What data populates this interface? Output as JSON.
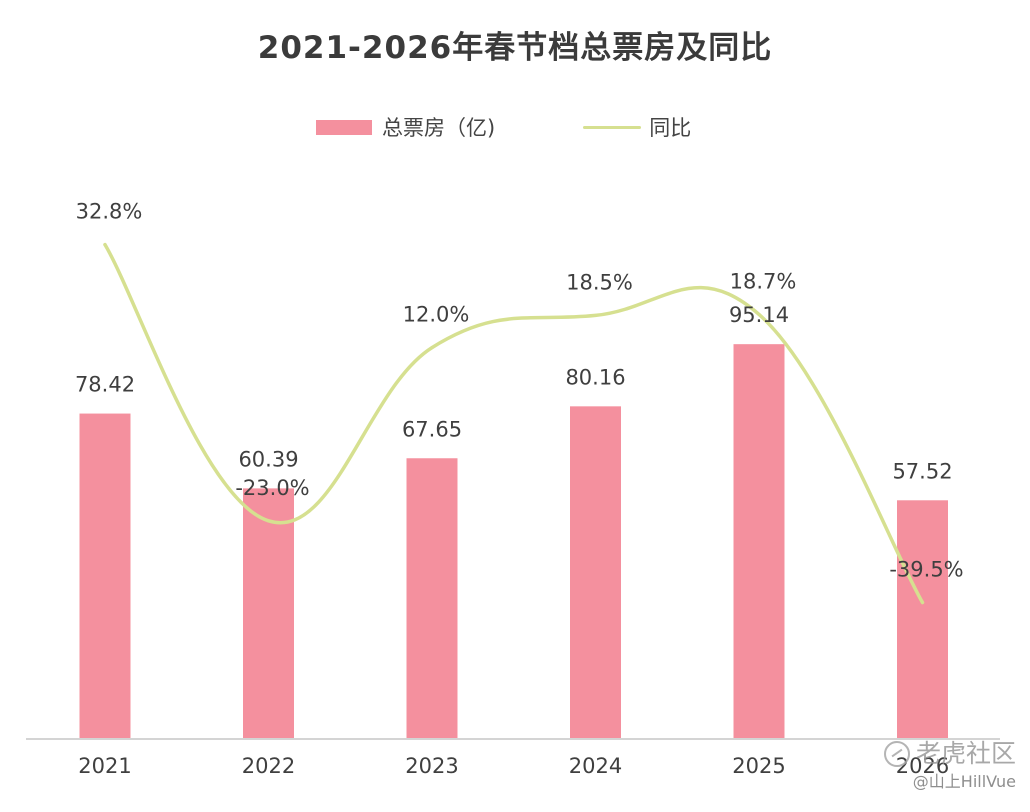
{
  "chart_data": {
    "type": "bar",
    "title": "2021-2026年春节档总票房及同比",
    "categories": [
      "2021",
      "2022",
      "2023",
      "2024",
      "2025",
      "2026"
    ],
    "series": [
      {
        "name": "总票房（亿)",
        "type": "bar",
        "values": [
          78.42,
          60.39,
          67.65,
          80.16,
          95.14,
          57.52
        ],
        "labels": [
          "78.42",
          "60.39",
          "67.65",
          "80.16",
          "95.14",
          "57.52"
        ],
        "color": "#f4909e"
      },
      {
        "name": "同比",
        "type": "line",
        "values": [
          32.8,
          -23.0,
          12.0,
          18.5,
          18.7,
          -39.5
        ],
        "labels": [
          "32.8%",
          "-23.0%",
          "12.0%",
          "18.5%",
          "18.7%",
          "-39.5%"
        ],
        "color": "#d6e090",
        "smooth": true
      }
    ],
    "bar_ylim": [
      0,
      105
    ],
    "line_ylim": [
      -50,
      45
    ],
    "legend_position": "top-center",
    "grid": false
  },
  "watermark": {
    "line1": "老虎社区",
    "line2": "@山上HillVue"
  }
}
